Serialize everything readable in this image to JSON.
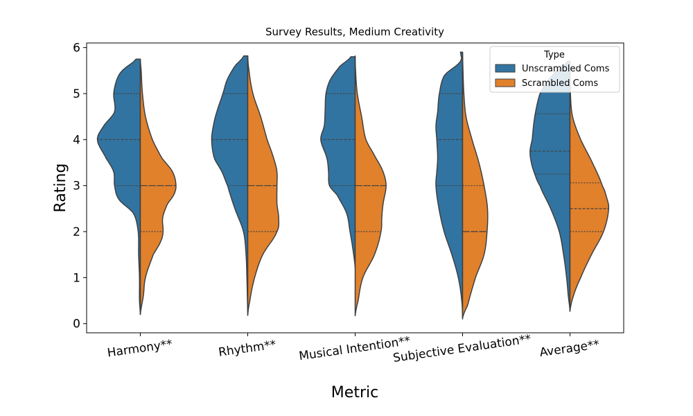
{
  "chart_data": {
    "type": "violin",
    "title": "Survey Results, Medium Creativity",
    "xlabel": "Metric",
    "ylabel": "Rating",
    "ylim": [
      -0.2,
      6.1
    ],
    "yticks": [
      0,
      1,
      2,
      3,
      4,
      5,
      6
    ],
    "categories": [
      "Harmony**",
      "Rhythm**",
      "Musical Intention**",
      "Subjective Evaluation**",
      "Average**"
    ],
    "split": true,
    "inner": "quartile",
    "legend": {
      "title": "Type",
      "placement": "top-right"
    },
    "colors": {
      "Unscrambled Coms": "#3274a1",
      "Scrambled Coms": "#e1812c",
      "edge": "#3f3f3f"
    },
    "series": [
      {
        "name": "Unscrambled Coms",
        "side": "left",
        "violins": [
          {
            "range": [
              0.2,
              5.75
            ],
            "profile": [
              [
                0.2,
                0.0
              ],
              [
                0.5,
                0.02
              ],
              [
                1.0,
                0.02
              ],
              [
                1.5,
                0.04
              ],
              [
                2.0,
                0.05
              ],
              [
                2.4,
                0.16
              ],
              [
                2.7,
                0.5
              ],
              [
                3.0,
                0.6
              ],
              [
                3.3,
                0.62
              ],
              [
                3.6,
                0.8
              ],
              [
                4.0,
                1.0
              ],
              [
                4.3,
                0.85
              ],
              [
                4.6,
                0.6
              ],
              [
                5.0,
                0.62
              ],
              [
                5.3,
                0.55
              ],
              [
                5.5,
                0.42
              ],
              [
                5.75,
                0.1
              ]
            ],
            "quartiles": [
              3.0,
              4.0,
              5.0
            ]
          },
          {
            "range": [
              0.18,
              5.82
            ],
            "profile": [
              [
                0.18,
                0.0
              ],
              [
                0.6,
                0.01
              ],
              [
                1.0,
                0.02
              ],
              [
                1.5,
                0.04
              ],
              [
                2.0,
                0.1
              ],
              [
                2.5,
                0.3
              ],
              [
                3.0,
                0.47
              ],
              [
                3.3,
                0.6
              ],
              [
                3.6,
                0.78
              ],
              [
                4.0,
                0.84
              ],
              [
                4.3,
                0.8
              ],
              [
                4.6,
                0.72
              ],
              [
                5.0,
                0.58
              ],
              [
                5.3,
                0.48
              ],
              [
                5.6,
                0.3
              ],
              [
                5.82,
                0.09
              ]
            ],
            "quartiles": [
              3.0,
              4.0,
              5.0
            ]
          },
          {
            "range": [
              1.2,
              5.8
            ],
            "profile": [
              [
                1.2,
                0.0
              ],
              [
                1.6,
                0.05
              ],
              [
                2.0,
                0.12
              ],
              [
                2.4,
                0.2
              ],
              [
                2.8,
                0.42
              ],
              [
                3.0,
                0.6
              ],
              [
                3.3,
                0.62
              ],
              [
                3.6,
                0.66
              ],
              [
                4.0,
                0.8
              ],
              [
                4.3,
                0.72
              ],
              [
                4.6,
                0.7
              ],
              [
                5.0,
                0.68
              ],
              [
                5.3,
                0.58
              ],
              [
                5.6,
                0.35
              ],
              [
                5.8,
                0.1
              ]
            ],
            "quartiles": [
              3.0,
              4.0,
              5.0
            ]
          },
          {
            "range": [
              0.1,
              5.9
            ],
            "profile": [
              [
                0.1,
                0.0
              ],
              [
                0.5,
                0.02
              ],
              [
                1.0,
                0.1
              ],
              [
                1.5,
                0.25
              ],
              [
                2.0,
                0.43
              ],
              [
                2.5,
                0.55
              ],
              [
                3.0,
                0.62
              ],
              [
                3.3,
                0.6
              ],
              [
                3.6,
                0.58
              ],
              [
                4.0,
                0.6
              ],
              [
                4.3,
                0.62
              ],
              [
                4.6,
                0.58
              ],
              [
                5.0,
                0.54
              ],
              [
                5.4,
                0.42
              ],
              [
                5.7,
                0.05
              ],
              [
                5.9,
                0.05
              ]
            ],
            "quartiles": [
              3.0,
              4.0,
              5.0
            ]
          },
          {
            "range": [
              0.27,
              5.7
            ],
            "profile": [
              [
                0.27,
                0.0
              ],
              [
                0.6,
                0.04
              ],
              [
                1.0,
                0.08
              ],
              [
                1.5,
                0.15
              ],
              [
                2.0,
                0.25
              ],
              [
                2.5,
                0.45
              ],
              [
                3.0,
                0.7
              ],
              [
                3.25,
                0.82
              ],
              [
                3.5,
                0.9
              ],
              [
                3.75,
                0.93
              ],
              [
                4.0,
                0.88
              ],
              [
                4.5,
                0.82
              ],
              [
                5.0,
                0.7
              ],
              [
                5.3,
                0.5
              ],
              [
                5.5,
                0.3
              ],
              [
                5.7,
                0.05
              ]
            ],
            "quartiles": [
              3.25,
              3.75,
              4.56
            ]
          }
        ]
      },
      {
        "name": "Scrambled Coms",
        "side": "right",
        "violins": [
          {
            "range": [
              0.2,
              5.75
            ],
            "profile": [
              [
                0.2,
                0.0
              ],
              [
                0.6,
                0.07
              ],
              [
                1.0,
                0.12
              ],
              [
                1.5,
                0.3
              ],
              [
                1.8,
                0.48
              ],
              [
                2.0,
                0.53
              ],
              [
                2.3,
                0.52
              ],
              [
                2.6,
                0.63
              ],
              [
                2.8,
                0.78
              ],
              [
                3.0,
                0.83
              ],
              [
                3.3,
                0.75
              ],
              [
                3.6,
                0.5
              ],
              [
                4.0,
                0.28
              ],
              [
                4.5,
                0.12
              ],
              [
                5.0,
                0.05
              ],
              [
                5.5,
                0.02
              ],
              [
                5.75,
                0.0
              ]
            ],
            "quartiles": [
              2.0,
              3.0,
              3.0
            ]
          },
          {
            "range": [
              0.18,
              5.82
            ],
            "profile": [
              [
                0.18,
                0.0
              ],
              [
                0.5,
                0.05
              ],
              [
                1.0,
                0.16
              ],
              [
                1.5,
                0.35
              ],
              [
                2.0,
                0.68
              ],
              [
                2.3,
                0.72
              ],
              [
                2.6,
                0.68
              ],
              [
                3.0,
                0.68
              ],
              [
                3.3,
                0.68
              ],
              [
                3.6,
                0.6
              ],
              [
                4.0,
                0.45
              ],
              [
                4.5,
                0.3
              ],
              [
                5.0,
                0.12
              ],
              [
                5.5,
                0.03
              ],
              [
                5.82,
                0.0
              ]
            ],
            "quartiles": [
              2.0,
              3.0,
              3.0
            ]
          },
          {
            "range": [
              0.17,
              5.82
            ],
            "profile": [
              [
                0.17,
                0.0
              ],
              [
                0.5,
                0.07
              ],
              [
                1.0,
                0.18
              ],
              [
                1.5,
                0.45
              ],
              [
                2.0,
                0.6
              ],
              [
                2.3,
                0.62
              ],
              [
                2.6,
                0.65
              ],
              [
                3.0,
                0.72
              ],
              [
                3.3,
                0.65
              ],
              [
                3.6,
                0.48
              ],
              [
                4.0,
                0.25
              ],
              [
                4.5,
                0.15
              ],
              [
                5.0,
                0.05
              ],
              [
                5.5,
                0.01
              ],
              [
                5.82,
                0.0
              ]
            ],
            "quartiles": [
              2.0,
              3.0,
              3.0
            ]
          },
          {
            "range": [
              0.12,
              5.9
            ],
            "profile": [
              [
                0.12,
                0.0
              ],
              [
                0.4,
                0.12
              ],
              [
                1.0,
                0.3
              ],
              [
                1.5,
                0.5
              ],
              [
                2.0,
                0.57
              ],
              [
                2.5,
                0.58
              ],
              [
                3.0,
                0.5
              ],
              [
                3.5,
                0.38
              ],
              [
                4.0,
                0.22
              ],
              [
                4.5,
                0.08
              ],
              [
                5.0,
                0.03
              ],
              [
                5.5,
                0.01
              ],
              [
                5.9,
                0.0
              ]
            ],
            "quartiles": [
              2.0,
              2.0,
              3.0
            ]
          },
          {
            "range": [
              0.27,
              5.7
            ],
            "profile": [
              [
                0.27,
                0.0
              ],
              [
                0.6,
                0.08
              ],
              [
                1.0,
                0.25
              ],
              [
                1.5,
                0.5
              ],
              [
                2.0,
                0.78
              ],
              [
                2.5,
                0.9
              ],
              [
                2.75,
                0.85
              ],
              [
                3.0,
                0.75
              ],
              [
                3.5,
                0.52
              ],
              [
                4.0,
                0.25
              ],
              [
                4.5,
                0.06
              ],
              [
                5.0,
                0.01
              ],
              [
                5.7,
                0.0
              ]
            ],
            "quartiles": [
              2.0,
              2.5,
              3.06
            ]
          }
        ]
      }
    ]
  }
}
